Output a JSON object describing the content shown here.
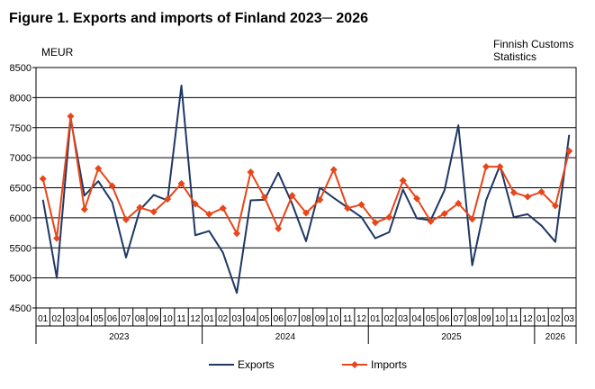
{
  "title": "Figure 1. Exports and imports of Finland 2023─ 2026",
  "source_line1": "Finnish Customs",
  "source_line2": "Statistics",
  "chart_data": {
    "type": "line",
    "ylabel": "MEUR",
    "ylim": [
      4500,
      8500
    ],
    "yticks": [
      4500,
      5000,
      5500,
      6000,
      6500,
      7000,
      7500,
      8000,
      8500
    ],
    "grid": true,
    "legend": "bottom",
    "categories": [
      "01",
      "02",
      "03",
      "04",
      "05",
      "06",
      "07",
      "08",
      "09",
      "10",
      "11",
      "12",
      "01",
      "02",
      "03",
      "04",
      "05",
      "06",
      "07",
      "08",
      "09",
      "10",
      "11",
      "12",
      "01",
      "02",
      "03",
      "04",
      "05",
      "06",
      "07",
      "08",
      "09",
      "10",
      "11",
      "12",
      "01",
      "02",
      "03"
    ],
    "years": [
      {
        "label": "2023",
        "count": 12
      },
      {
        "label": "2024",
        "count": 12
      },
      {
        "label": "2025",
        "count": 12
      },
      {
        "label": "2026",
        "count": 3
      }
    ],
    "series": [
      {
        "name": "Exports",
        "color": "#1f3864",
        "marker": "none",
        "values": [
          6300,
          5000,
          7650,
          6370,
          6610,
          6260,
          5340,
          6130,
          6380,
          6290,
          8200,
          5710,
          5780,
          5420,
          4750,
          6290,
          6300,
          6750,
          6230,
          5610,
          6500,
          6330,
          6170,
          6010,
          5660,
          5760,
          6470,
          5990,
          5960,
          6460,
          7540,
          5210,
          6290,
          6870,
          6010,
          6060,
          5870,
          5600,
          7380
        ]
      },
      {
        "name": "Imports",
        "color": "#e8461a",
        "marker": "diamond",
        "values": [
          6650,
          5660,
          7690,
          6140,
          6820,
          6530,
          5970,
          6170,
          6100,
          6310,
          6570,
          6230,
          6060,
          6160,
          5740,
          6760,
          6340,
          5820,
          6370,
          6080,
          6300,
          6800,
          6160,
          6220,
          5920,
          6010,
          6620,
          6320,
          5940,
          6070,
          6240,
          5980,
          6850,
          6850,
          6420,
          6350,
          6430,
          6200,
          7110
        ]
      }
    ]
  }
}
